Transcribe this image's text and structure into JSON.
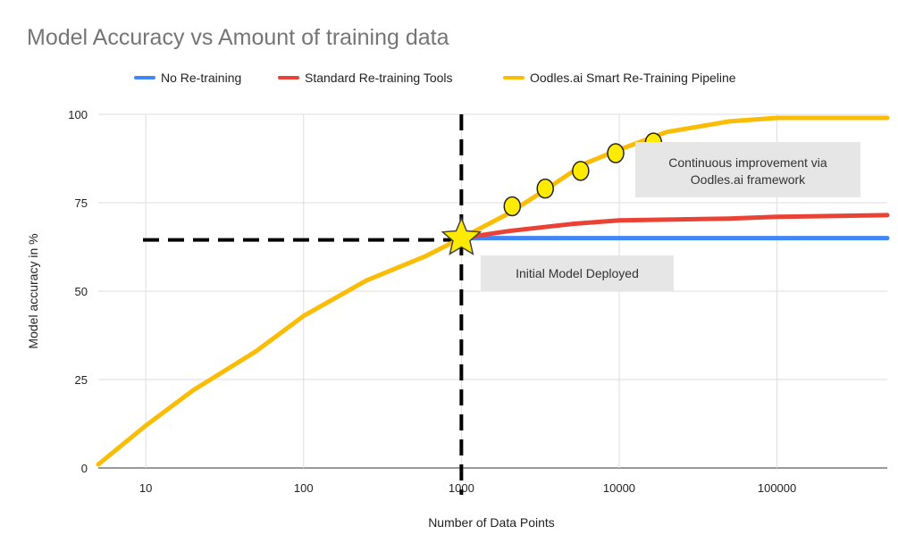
{
  "chart_data": {
    "type": "line",
    "title": "Model Accuracy vs Amount of training data",
    "xlabel": "Number of Data Points",
    "ylabel": "Model accuracy in %",
    "x_scale": "log",
    "xlim": [
      5,
      500000
    ],
    "ylim": [
      0,
      100
    ],
    "xticks": [
      10,
      100,
      1000,
      10000,
      100000
    ],
    "yticks": [
      0,
      25,
      50,
      75,
      100
    ],
    "grid": true,
    "legend_position": "top",
    "series": [
      {
        "name": "No Re-training",
        "color": "#4285f4",
        "x": [
          1000,
          2000,
          5000,
          10000,
          50000,
          100000,
          500000
        ],
        "y": [
          65,
          65,
          65,
          65,
          65,
          65,
          65
        ]
      },
      {
        "name": "Standard Re-training Tools",
        "color": "#ea4335",
        "x": [
          1000,
          2000,
          5000,
          10000,
          50000,
          100000,
          500000
        ],
        "y": [
          65,
          67,
          69,
          70,
          70.5,
          71,
          71.5
        ]
      },
      {
        "name": "Oodles.ai Smart Re-Training Pipeline",
        "color": "#fbbc04",
        "x": [
          5,
          10,
          20,
          50,
          100,
          250,
          600,
          1000,
          2000,
          3500,
          6000,
          10000,
          20000,
          50000,
          100000,
          500000
        ],
        "y": [
          1,
          12,
          22,
          33,
          43,
          53,
          60,
          65,
          72,
          79,
          86,
          90,
          95,
          98,
          99,
          99
        ]
      }
    ],
    "markers": {
      "star": {
        "x": 1000,
        "y": 65
      },
      "circles": [
        {
          "x": 2100,
          "y": 74
        },
        {
          "x": 3400,
          "y": 79
        },
        {
          "x": 5700,
          "y": 84
        },
        {
          "x": 9500,
          "y": 89
        },
        {
          "x": 16500,
          "y": 92
        }
      ]
    },
    "reference_lines": {
      "vertical_x": 1000,
      "horizontal_y": 64.5
    },
    "annotations": [
      {
        "lines": [
          "Continuous improvement via",
          "Oodles.ai framework"
        ]
      },
      {
        "lines": [
          "Initial Model Deployed"
        ]
      }
    ]
  }
}
